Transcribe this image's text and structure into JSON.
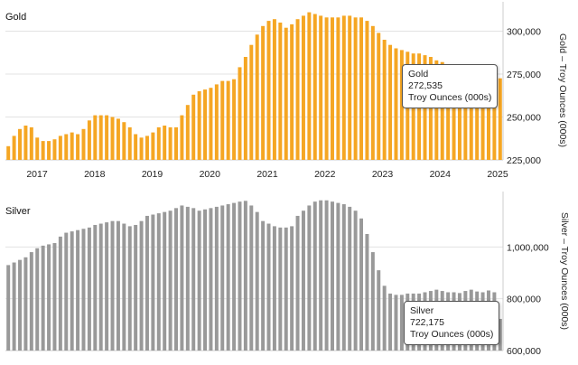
{
  "chart_data": [
    {
      "type": "bar",
      "title": "Gold",
      "ylabel": "Gold – Troy Ounces (000s)",
      "ylim": [
        225000,
        315000
      ],
      "yticks": [
        225000,
        250000,
        275000,
        300000
      ],
      "ytick_labels": [
        "225,000",
        "250,000",
        "275,000",
        "300,000"
      ],
      "xtick_labels": [
        "2017",
        "2018",
        "2019",
        "2020",
        "2021",
        "2022",
        "2023",
        "2024",
        "2025"
      ],
      "color": "#F5A623",
      "grid": true,
      "values": [
        233000,
        239000,
        243000,
        245000,
        244000,
        238000,
        236000,
        236000,
        237000,
        239000,
        240000,
        241000,
        240000,
        243000,
        248000,
        251000,
        251000,
        251000,
        250000,
        249000,
        247000,
        244000,
        240000,
        238000,
        239000,
        241000,
        244000,
        245000,
        244000,
        244000,
        251000,
        257000,
        263000,
        265000,
        266000,
        267000,
        269000,
        271000,
        271000,
        272000,
        279000,
        285000,
        292000,
        298000,
        303000,
        306000,
        307000,
        305000,
        302000,
        304000,
        307000,
        309000,
        311000,
        310000,
        309000,
        308000,
        308000,
        308000,
        309000,
        309000,
        308000,
        308000,
        306000,
        303000,
        299000,
        295000,
        292000,
        290000,
        289000,
        288000,
        287000,
        287000,
        286000,
        285000,
        283000,
        282000,
        280000,
        279000,
        278000,
        277000,
        276000,
        275000,
        274000,
        273000,
        273000,
        272535
      ],
      "tooltip": {
        "series": "Gold",
        "value": "272,535",
        "unit": "Troy Ounces (000s)"
      }
    },
    {
      "type": "bar",
      "title": "Silver",
      "ylabel": "Silver – Troy Ounces (000s)",
      "ylim": [
        600000,
        1200000
      ],
      "yticks": [
        600000,
        800000,
        1000000
      ],
      "ytick_labels": [
        "600,000",
        "800,000",
        "1,000,000"
      ],
      "color": "#999999",
      "grid": true,
      "values": [
        930000,
        940000,
        950000,
        960000,
        980000,
        995000,
        1005000,
        1010000,
        1015000,
        1040000,
        1055000,
        1060000,
        1065000,
        1070000,
        1075000,
        1085000,
        1090000,
        1095000,
        1100000,
        1100000,
        1090000,
        1080000,
        1085000,
        1100000,
        1120000,
        1125000,
        1130000,
        1135000,
        1140000,
        1150000,
        1160000,
        1155000,
        1150000,
        1140000,
        1145000,
        1150000,
        1155000,
        1160000,
        1165000,
        1170000,
        1175000,
        1178000,
        1160000,
        1135000,
        1100000,
        1090000,
        1080000,
        1075000,
        1075000,
        1080000,
        1120000,
        1140000,
        1160000,
        1175000,
        1180000,
        1180000,
        1175000,
        1170000,
        1165000,
        1155000,
        1140000,
        1110000,
        1050000,
        980000,
        910000,
        850000,
        820000,
        815000,
        815000,
        820000,
        820000,
        820000,
        825000,
        830000,
        835000,
        830000,
        825000,
        825000,
        822000,
        830000,
        835000,
        828000,
        825000,
        832000,
        825000,
        722175
      ],
      "tooltip": {
        "series": "Silver",
        "value": "722,175",
        "unit": "Troy Ounces (000s)"
      }
    }
  ]
}
